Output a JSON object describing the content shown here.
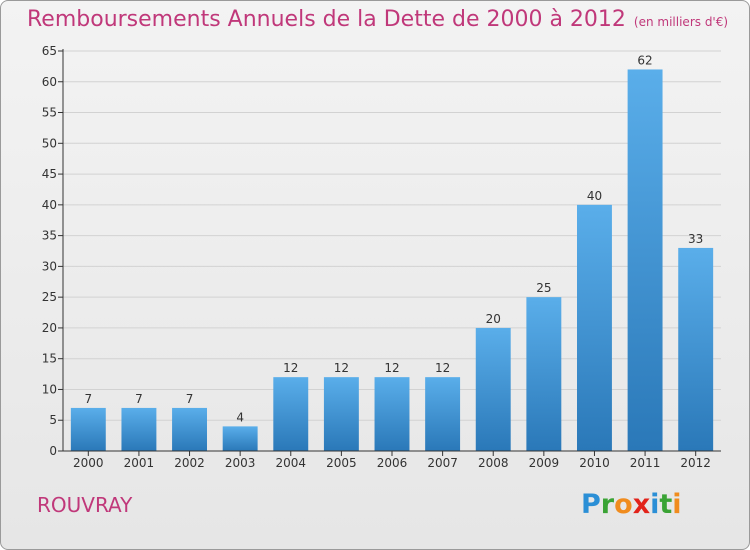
{
  "title": "Remboursements Annuels de la Dette de 2000 à 2012",
  "unit_label": "(en milliers d'€)",
  "place": "ROUVRAY",
  "logo": {
    "text": "Proxiti",
    "letters": [
      {
        "ch": "P",
        "color": "#2b8fd6"
      },
      {
        "ch": "r",
        "color": "#3aa335"
      },
      {
        "ch": "o",
        "color": "#f08c1e"
      },
      {
        "ch": "x",
        "color": "#e2231a"
      },
      {
        "ch": "i",
        "color": "#2b8fd6"
      },
      {
        "ch": "t",
        "color": "#3aa335"
      },
      {
        "ch": "i",
        "color": "#f08c1e"
      }
    ]
  },
  "colors": {
    "bar_top": "#5aaeea",
    "bar_bottom": "#2a78b8",
    "title": "#c0387a",
    "grid": "#d2d2d2",
    "axis": "#333333"
  },
  "chart_data": {
    "type": "bar",
    "categories": [
      "2000",
      "2001",
      "2002",
      "2003",
      "2004",
      "2005",
      "2006",
      "2007",
      "2008",
      "2009",
      "2010",
      "2011",
      "2012"
    ],
    "values": [
      7,
      7,
      7,
      4,
      12,
      12,
      12,
      12,
      20,
      25,
      40,
      62,
      33
    ],
    "title": "Remboursements Annuels de la Dette de 2000 à 2012",
    "xlabel": "",
    "ylabel": "",
    "ylim": [
      0,
      65
    ],
    "yticks": [
      0,
      5,
      10,
      15,
      20,
      25,
      30,
      35,
      40,
      45,
      50,
      55,
      60,
      65
    ],
    "grid": true,
    "data_labels": true
  }
}
